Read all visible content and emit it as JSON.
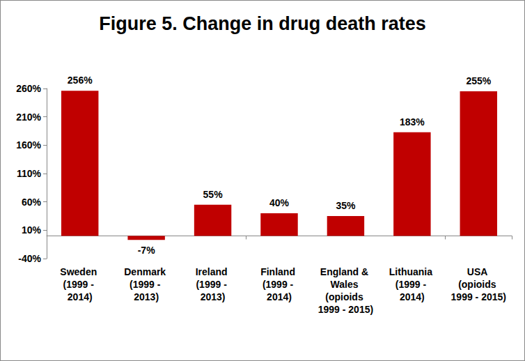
{
  "chart_data": {
    "type": "bar",
    "title": "Figure 5. Change in drug death rates",
    "categories": [
      "Sweden (1999 - 2014)",
      "Denmark (1999 - 2013)",
      "Ireland (1999 - 2013)",
      "Finland (1999 - 2014)",
      "England & Wales (opioids 1999 - 2015)",
      "Lithuania (1999 - 2014)",
      "USA (opioids 1999 - 2015)"
    ],
    "values": [
      256,
      -7,
      55,
      40,
      35,
      183,
      255
    ],
    "value_labels": [
      "256%",
      "-7%",
      "55%",
      "40%",
      "35%",
      "183%",
      "255%"
    ],
    "color": "#c00000",
    "ylim": [
      -40,
      260
    ],
    "yticks": [
      {
        "value": -40,
        "label": "-40%"
      },
      {
        "value": 10,
        "label": "10%"
      },
      {
        "value": 60,
        "label": "60%"
      },
      {
        "value": 110,
        "label": "110%"
      },
      {
        "value": 160,
        "label": "160%"
      },
      {
        "value": 210,
        "label": "210%"
      },
      {
        "value": 260,
        "label": "260%"
      }
    ],
    "grid": false,
    "data_labels": true
  }
}
